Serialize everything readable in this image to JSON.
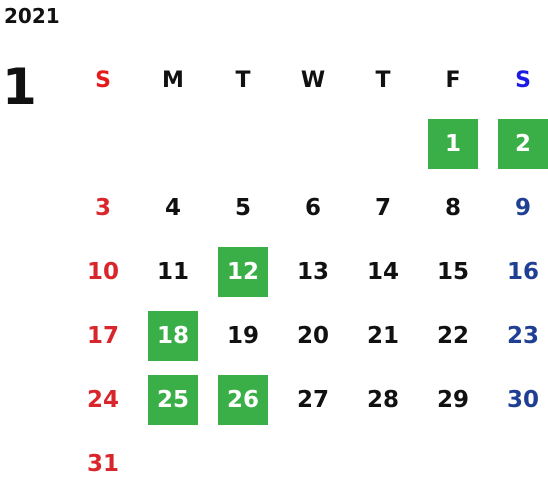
{
  "calendar": {
    "year": "2021",
    "month": "1",
    "weekday_headers": [
      "S",
      "M",
      "T",
      "W",
      "T",
      "F",
      "S"
    ],
    "first_weekday_index": 5,
    "days": [
      "1",
      "2",
      "3",
      "4",
      "5",
      "6",
      "7",
      "8",
      "9",
      "10",
      "11",
      "12",
      "13",
      "14",
      "15",
      "16",
      "17",
      "18",
      "19",
      "20",
      "21",
      "22",
      "23",
      "24",
      "25",
      "26",
      "27",
      "28",
      "29",
      "30",
      "31"
    ],
    "highlighted_days": [
      "1",
      "2",
      "12",
      "18",
      "25",
      "26"
    ],
    "colors": {
      "sunday": "#d9262c",
      "saturday": "#1f3f94",
      "saturday_header": "#1b1be4",
      "highlight": "#3aaf48",
      "text": "#111111"
    }
  }
}
